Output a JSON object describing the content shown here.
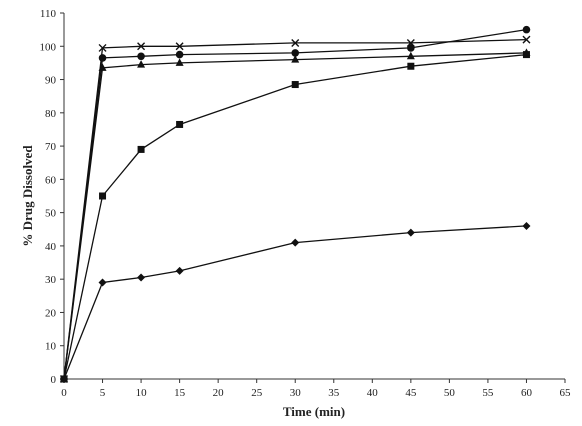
{
  "chart_data": {
    "type": "line",
    "title": "",
    "xlabel": "Time (min)",
    "ylabel": "% Drug Dissolved",
    "xlim": [
      0,
      65
    ],
    "ylim": [
      0,
      110
    ],
    "xticks": [
      0,
      5,
      10,
      15,
      20,
      25,
      30,
      35,
      40,
      45,
      50,
      55,
      60,
      65
    ],
    "yticks": [
      0,
      10,
      20,
      30,
      40,
      50,
      60,
      70,
      80,
      90,
      100,
      110
    ],
    "grid": false,
    "legend": "none",
    "x": [
      0,
      5,
      10,
      15,
      30,
      45,
      60
    ],
    "series": [
      {
        "marker": "diamond",
        "color": "#111111",
        "values": [
          0,
          29,
          30.5,
          32.5,
          41,
          44,
          46
        ]
      },
      {
        "marker": "square",
        "color": "#111111",
        "values": [
          0,
          55,
          69,
          76.5,
          88.5,
          94,
          97.5
        ]
      },
      {
        "marker": "triangle",
        "color": "#111111",
        "values": [
          0,
          93.5,
          94.5,
          95,
          96,
          97,
          98
        ]
      },
      {
        "marker": "circle",
        "color": "#111111",
        "values": [
          0,
          96.5,
          97,
          97.5,
          98,
          99.5,
          105
        ]
      },
      {
        "marker": "x",
        "color": "#111111",
        "values": [
          0,
          99.5,
          100,
          100,
          101,
          101,
          102
        ]
      }
    ]
  }
}
